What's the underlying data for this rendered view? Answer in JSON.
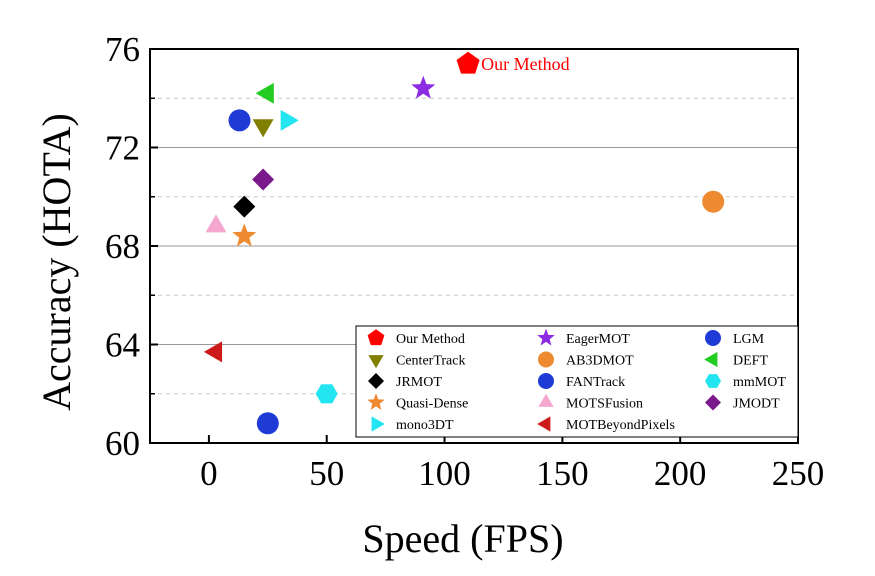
{
  "chart_data": {
    "type": "scatter",
    "xlabel": "Speed (FPS)",
    "ylabel": "Accuracy (HOTA)",
    "xlim": [
      -25,
      250
    ],
    "ylim": [
      60,
      76
    ],
    "xticks": [
      "0",
      "50",
      "100",
      "150",
      "200",
      "250"
    ],
    "xtick_values": [
      0,
      50,
      100,
      150,
      200,
      250
    ],
    "yticks": [
      "60",
      "64",
      "68",
      "72",
      "76"
    ],
    "ytick_values": [
      60,
      64,
      68,
      72,
      76
    ],
    "grid": "horizontal dashed",
    "legend_position": "bottom-right",
    "annotation": {
      "text": "Our Method",
      "color": "#ff0000",
      "x": 110,
      "y": 75.4
    },
    "series": [
      {
        "name": "Our Method",
        "x": 110,
        "y": 75.4,
        "marker": "pentagon",
        "color": "#ff0000"
      },
      {
        "name": "EagerMOT",
        "x": 91,
        "y": 74.4,
        "marker": "star",
        "color": "#8b2be2"
      },
      {
        "name": "LGM",
        "x": 13,
        "y": 73.1,
        "marker": "circle",
        "color": "#1f3bd6"
      },
      {
        "name": "CenterTrack",
        "x": 23,
        "y": 72.9,
        "marker": "triangle-down",
        "color": "#808000"
      },
      {
        "name": "AB3DMOT",
        "x": 214,
        "y": 69.8,
        "marker": "circle",
        "color": "#ee8a30"
      },
      {
        "name": "DEFT",
        "x": 25,
        "y": 74.2,
        "marker": "triangle-left",
        "color": "#22cc22"
      },
      {
        "name": "JRMOT",
        "x": 15,
        "y": 69.6,
        "marker": "diamond",
        "color": "#000000"
      },
      {
        "name": "FANTrack",
        "x": 25,
        "y": 60.8,
        "marker": "circle",
        "color": "#1f3bd6"
      },
      {
        "name": "mmMOT",
        "x": 50,
        "y": 62.0,
        "marker": "hexagon",
        "color": "#22e5f0"
      },
      {
        "name": "Quasi-Dense",
        "x": 15,
        "y": 68.4,
        "marker": "star",
        "color": "#ee8a30"
      },
      {
        "name": "MOTSFusion",
        "x": 3,
        "y": 68.8,
        "marker": "triangle-up",
        "color": "#f4a8d0"
      },
      {
        "name": "JMODT",
        "x": 23,
        "y": 70.7,
        "marker": "diamond",
        "color": "#7a1a8a"
      },
      {
        "name": "mono3DT",
        "x": 33,
        "y": 73.1,
        "marker": "triangle-right",
        "color": "#22e5f0"
      },
      {
        "name": "MOTBeyondPixels",
        "x": 3,
        "y": 63.7,
        "marker": "triangle-left",
        "color": "#cc1a1a"
      }
    ],
    "legend_order": [
      "Our Method",
      "EagerMOT",
      "LGM",
      "CenterTrack",
      "AB3DMOT",
      "DEFT",
      "JRMOT",
      "FANTrack",
      "mmMOT",
      "Quasi-Dense",
      "MOTSFusion",
      "JMODT",
      "mono3DT",
      "MOTBeyondPixels"
    ]
  }
}
